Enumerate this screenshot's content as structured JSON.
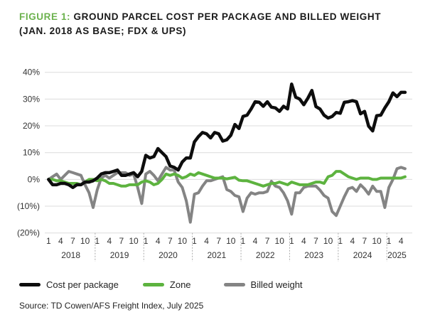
{
  "title": {
    "figure_label": "FIGURE 1:",
    "line1": "GROUND PARCEL COST PER PACKAGE AND BILLED WEIGHT",
    "line2": "(JAN. 2018 AS BASE; FDX & UPS)"
  },
  "source": "Source: TD Cowen/AFS Freight Index, July 2025",
  "chart_data": {
    "type": "line",
    "title": "GROUND PARCEL COST PER PACKAGE AND BILLED WEIGHT (JAN. 2018 AS BASE; FDX & UPS)",
    "x_start": "2018-01",
    "x_end": "2025-05",
    "x_frequency": "monthly",
    "ylim": [
      -20,
      40
    ],
    "y_ticks": [
      "(20%)",
      "(10%)",
      "0%",
      "10%",
      "20%",
      "30%",
      "40%"
    ],
    "y_tick_values": [
      -20,
      -10,
      0,
      10,
      20,
      30,
      40
    ],
    "month_tick_labels": [
      "1",
      "4",
      "7",
      "10"
    ],
    "years": [
      "2018",
      "2019",
      "2020",
      "2021",
      "2022",
      "2023",
      "2024",
      "2025"
    ],
    "grid": "horizontal",
    "legend_position": "bottom",
    "series": [
      {
        "name": "Cost per package",
        "color": "#0d0d0d",
        "values": [
          0,
          -2,
          -2,
          -1.5,
          -1.5,
          -2,
          -3,
          -2,
          -2,
          -1,
          -1,
          -0.5,
          0.5,
          2,
          2.5,
          2.5,
          3,
          3.5,
          1.5,
          1.5,
          2,
          2.5,
          1,
          3,
          9,
          8,
          8.5,
          11.5,
          10,
          8.5,
          5,
          4.5,
          3.5,
          6.5,
          8,
          8,
          14,
          16,
          17.5,
          17,
          15.5,
          17.5,
          17,
          14.3,
          14.8,
          16.5,
          20.5,
          19,
          23.5,
          24,
          26.3,
          29,
          28.8,
          27.3,
          29,
          27,
          26.7,
          25.4,
          27.3,
          26.3,
          35.6,
          30.7,
          30,
          27.9,
          30.3,
          33.2,
          27.2,
          26.3,
          24,
          22.9,
          23.5,
          25,
          24.7,
          28.8,
          29,
          29.4,
          29,
          24.5,
          25.4,
          19.9,
          18.1,
          23.8,
          24,
          26.7,
          29,
          32.3,
          30.9,
          32.5,
          32.5
        ]
      },
      {
        "name": "Zone",
        "color": "#5db33f",
        "values": [
          0,
          0,
          -0.5,
          -0.5,
          -1,
          -1.5,
          -1.5,
          -1.5,
          -2,
          -1,
          0,
          0,
          -0.5,
          0,
          -0.5,
          -1.5,
          -1.5,
          -2,
          -2.5,
          -2.5,
          -2,
          -2,
          -2,
          -1,
          -0.5,
          -1,
          -2,
          -1.5,
          0,
          2,
          1.5,
          2,
          1.5,
          0.5,
          1,
          2,
          1.5,
          2.5,
          2,
          1.5,
          1,
          0.5,
          0.5,
          0.5,
          0.2,
          0.5,
          0.8,
          -0.3,
          -0.5,
          -0.5,
          -1,
          -1.5,
          -2,
          -2.5,
          -2,
          -1.5,
          -1.5,
          -1,
          -1.5,
          -2,
          -1,
          -1.5,
          -2,
          -2,
          -2,
          -1.5,
          -1,
          -1,
          -1.5,
          1,
          1.5,
          3,
          3,
          2,
          1,
          0.5,
          0,
          0.5,
          0.5,
          0.5,
          0,
          0,
          0.5,
          0.5,
          0.5,
          0.5,
          0.5,
          0.5,
          1
        ]
      },
      {
        "name": "Billed weight",
        "color": "#848484",
        "values": [
          0,
          1,
          2,
          0,
          1.5,
          3,
          2.5,
          2,
          1.5,
          -2,
          -5,
          -10.5,
          -4,
          0.5,
          1.5,
          0.5,
          1.5,
          2.5,
          2.5,
          2.5,
          1.5,
          2,
          -3,
          -9,
          2,
          3,
          1.5,
          -0.5,
          2,
          4.5,
          3.5,
          3.5,
          -1,
          -3,
          -8,
          -16,
          -5.5,
          -5,
          -2.5,
          -0.5,
          -0.5,
          0,
          0.5,
          1,
          -3.8,
          -4.5,
          -6,
          -6.5,
          -12,
          -7,
          -5,
          -5.5,
          -5,
          -5,
          -4.5,
          -0.7,
          -2.5,
          -3,
          -5,
          -8,
          -13,
          -5,
          -5,
          -3,
          -2.5,
          -2.5,
          -2.5,
          -4,
          -6,
          -7,
          -12,
          -13.5,
          -10,
          -6.5,
          -3.5,
          -3,
          -4.5,
          -2,
          -3.5,
          -5.5,
          -2.5,
          -4.5,
          -4.5,
          -10.5,
          -3,
          0,
          4,
          4.5,
          4
        ]
      }
    ]
  }
}
